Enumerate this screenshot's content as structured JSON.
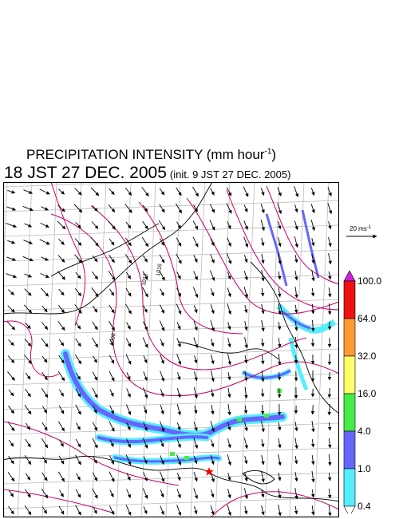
{
  "title": {
    "main": "PRECIPITATION INTENSITY (mm hour",
    "unit_exponent": "-1",
    "close": ")"
  },
  "subtitle": {
    "valid_time": "18 JST 27 DEC. 2005",
    "init": "(init. 9 JST 27 DEC. 2005)"
  },
  "wind_scale": {
    "label": "20 ms",
    "exponent": "-1"
  },
  "contour_labels": [
    "1008",
    "1012",
    "1016"
  ],
  "colorbar": {
    "unit": "mm hour-1",
    "levels": [
      "100.0",
      "64.0",
      "32.0",
      "16.0",
      "4.0",
      "1.0",
      "0.4"
    ],
    "colors": [
      "#cc22dd",
      "#ee1111",
      "#ff9933",
      "#ffff66",
      "#44ee44",
      "#6666ff",
      "#55eeff"
    ]
  },
  "colors": {
    "wind_vectors": "#000000",
    "isobars": "#cc0066",
    "grid": "#bbbbbb",
    "coastline": "#000000",
    "marker": "#ff0000"
  },
  "marker": "star-marker"
}
